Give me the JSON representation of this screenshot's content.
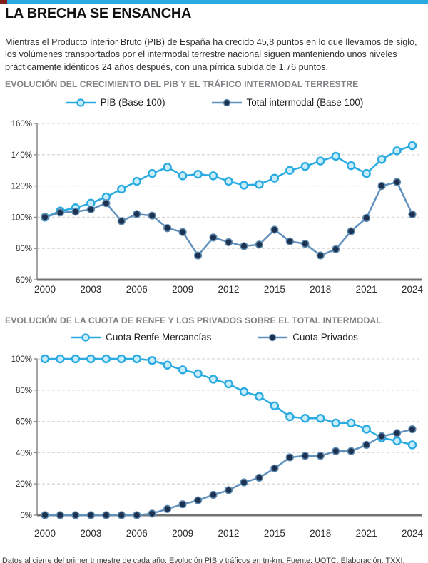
{
  "masthead": {
    "accent_color": "#82201e",
    "bar_color": "#29abe2"
  },
  "title": "LA BRECHA SE ENSANCHA",
  "intro": "Mientras el Producto Interior Bruto (PIB) de España ha crecido 45,8 puntos en lo que llevamos de siglo, los volúmenes transportados por el intermodal terrestre nacional siguen manteniendo unos niveles prácticamente idénticos 24 años después, con una pírrica subida de 1,76 puntos.",
  "footer": "Datos al cierre del primer trimestre de cada año. Evolución PIB y tráficos en tn-km. Fuente: UOTC. Elaboración: TXXI.",
  "style": {
    "grid_color": "#d9d9d9",
    "axis_color": "#8c8c8c",
    "baseline_color": "#737373",
    "tick_text_color": "#2b2b2b"
  },
  "chart_data": [
    {
      "type": "line",
      "title": "EVOLUCIÓN DEL CRECIMIENTO DEL PIB Y EL TRÁFICO INTERMODAL TERRESTRE",
      "x": [
        2000,
        2001,
        2002,
        2003,
        2004,
        2005,
        2006,
        2007,
        2008,
        2009,
        2010,
        2011,
        2012,
        2013,
        2014,
        2015,
        2016,
        2017,
        2018,
        2019,
        2020,
        2021,
        2022,
        2023,
        2024
      ],
      "x_tick_values": [
        2000,
        2003,
        2006,
        2009,
        2012,
        2015,
        2018,
        2021,
        2024
      ],
      "x_tick_labels": [
        "2000",
        "2003",
        "2006",
        "2009",
        "2012",
        "2015",
        "2018",
        "2021",
        "2024"
      ],
      "ylim": [
        60,
        160
      ],
      "y_tick_values": [
        160,
        140,
        120,
        100,
        80,
        60
      ],
      "y_tick_labels": [
        "160%",
        "140%",
        "120%",
        "100%",
        "80%",
        "60%"
      ],
      "grid": true,
      "legend_position": "top",
      "series": [
        {
          "name": "PIB (Base 100)",
          "line_color": "#29abe2",
          "marker": {
            "fill": "#c8ecfa",
            "stroke": "#29abe2",
            "r": 5,
            "sw": 2.4
          },
          "values": [
            100,
            104,
            106,
            109,
            113,
            118,
            123,
            128,
            132,
            126.5,
            127.5,
            126.5,
            123,
            120.5,
            121,
            125,
            130,
            132.5,
            136,
            139,
            133,
            128,
            137,
            142.5,
            145.8
          ]
        },
        {
          "name": "Total intermodal (Base 100)",
          "line_color": "#6090bd",
          "marker": {
            "fill": "#1d3150",
            "stroke": "#5d88ad",
            "r": 4.8,
            "sw": 1.6
          },
          "values": [
            100,
            103,
            103.5,
            105,
            109,
            97.5,
            102,
            101,
            93,
            90.5,
            75.5,
            87,
            84,
            81.5,
            82.5,
            92,
            84.5,
            83,
            75.5,
            79.5,
            91,
            99.5,
            120,
            122.5,
            101.8
          ]
        }
      ]
    },
    {
      "type": "line",
      "title": "EVOLUCIÓN DE LA CUOTA DE RENFE Y LOS PRIVADOS SOBRE EL TOTAL INTERMODAL",
      "x": [
        2000,
        2001,
        2002,
        2003,
        2004,
        2005,
        2006,
        2007,
        2008,
        2009,
        2010,
        2011,
        2012,
        2013,
        2014,
        2015,
        2016,
        2017,
        2018,
        2019,
        2020,
        2021,
        2022,
        2023,
        2024
      ],
      "x_tick_values": [
        2000,
        2003,
        2006,
        2009,
        2012,
        2015,
        2018,
        2021,
        2024
      ],
      "x_tick_labels": [
        "2000",
        "2003",
        "2006",
        "2009",
        "2012",
        "2015",
        "2018",
        "2021",
        "2024"
      ],
      "ylim": [
        0,
        100
      ],
      "y_tick_values": [
        100,
        80,
        60,
        40,
        20,
        0
      ],
      "y_tick_labels": [
        "100%",
        "80%",
        "60%",
        "40%",
        "20%",
        "0%"
      ],
      "grid": true,
      "legend_position": "top",
      "series": [
        {
          "name": "Cuota Renfe Mercancías",
          "line_color": "#29abe2",
          "marker": {
            "fill": "#c8ecfa",
            "stroke": "#29abe2",
            "r": 5,
            "sw": 2.4
          },
          "values": [
            100,
            100,
            100,
            100,
            100,
            100,
            100,
            99,
            96,
            93,
            90.5,
            87,
            84,
            79,
            76,
            70,
            63,
            62,
            62,
            59,
            59,
            55,
            49.5,
            47.5,
            45
          ]
        },
        {
          "name": "Cuota Privados",
          "line_color": "#6090bd",
          "marker": {
            "fill": "#1d3150",
            "stroke": "#5d88ad",
            "r": 4.8,
            "sw": 1.6
          },
          "values": [
            0,
            0,
            0,
            0,
            0,
            0,
            0,
            1,
            4,
            7,
            9.5,
            13,
            16,
            21,
            24,
            30,
            37,
            38,
            38,
            41,
            41,
            45,
            50.5,
            52.5,
            55
          ]
        }
      ]
    }
  ]
}
